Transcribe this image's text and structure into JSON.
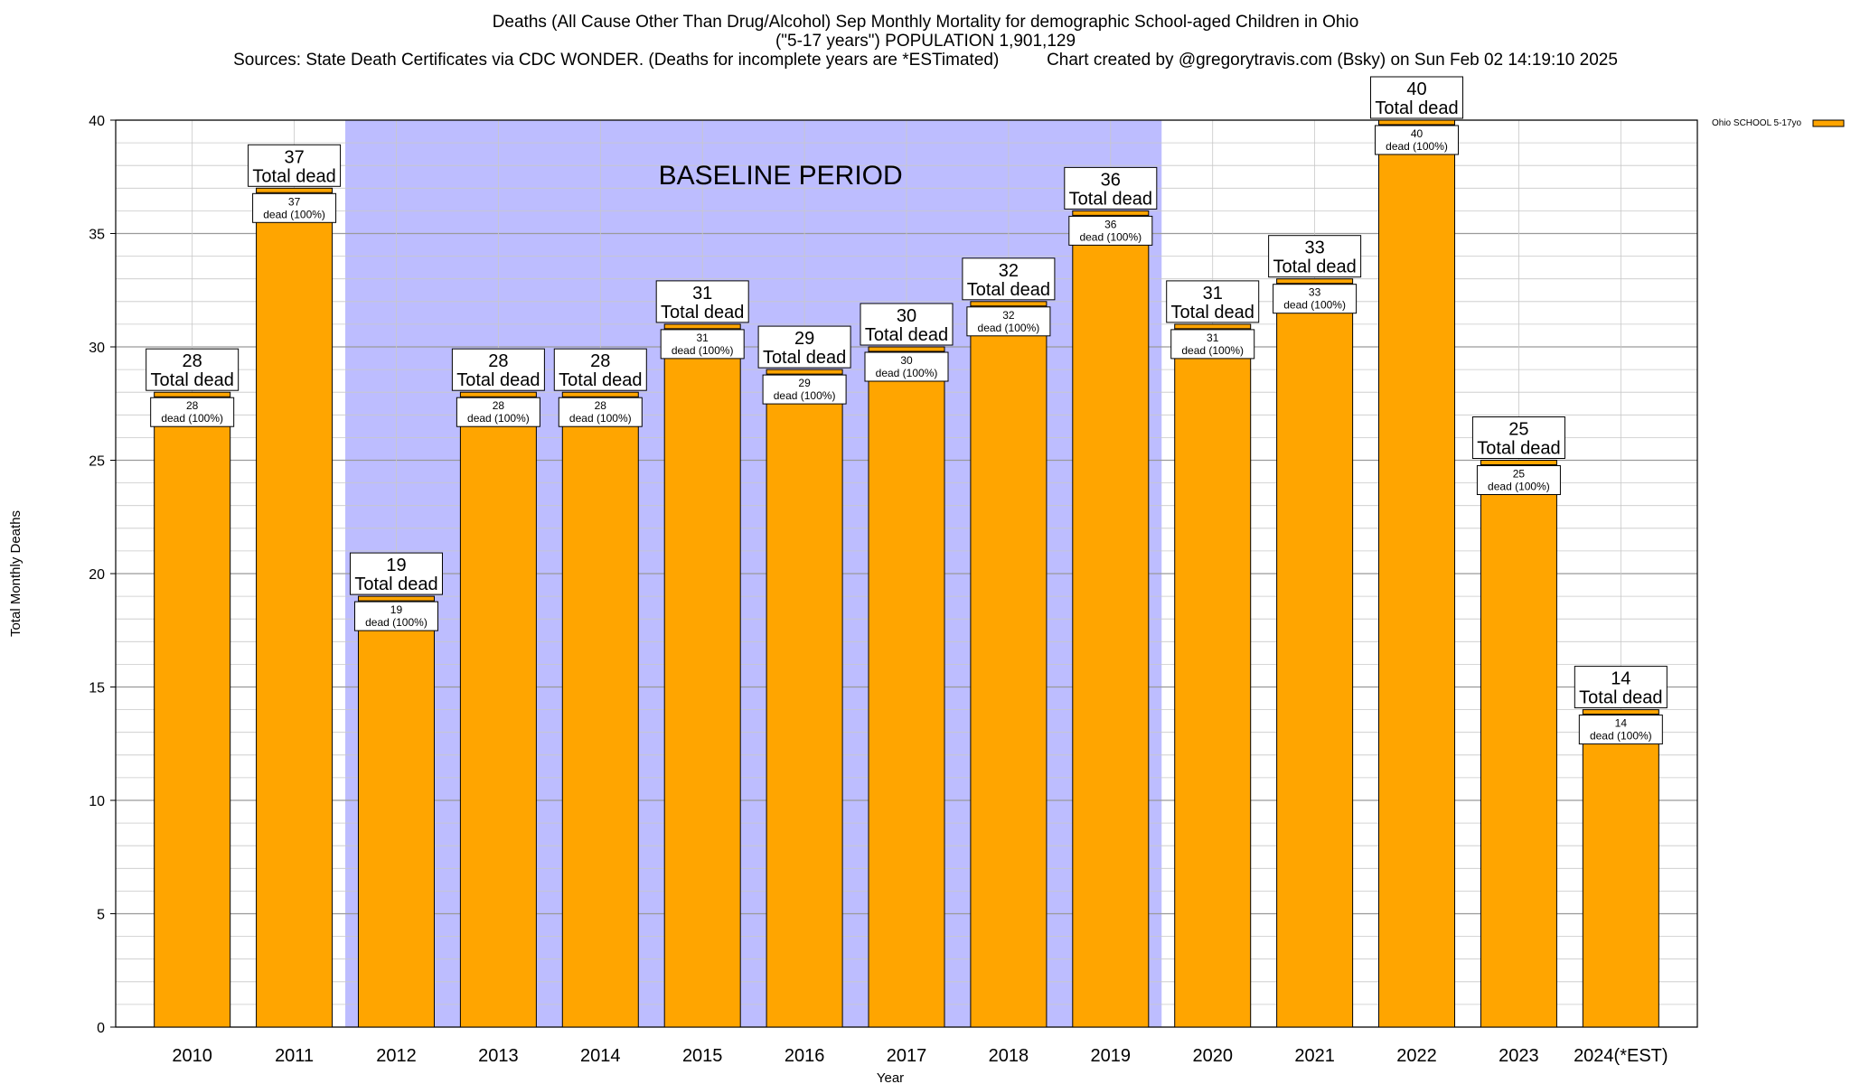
{
  "titles": {
    "line1": "Deaths (All Cause Other Than Drug/Alcohol) Sep Monthly Mortality for demographic School-aged Children in Ohio",
    "line2": "(\"5-17 years\") POPULATION 1,901,129",
    "line3_left": "Sources: State Death Certificates via CDC WONDER. (Deaths for incomplete years are *ESTimated)",
    "line3_right": "Chart created by @gregorytravis.com (Bsky) on Sun Feb 02 14:19:10 2025"
  },
  "chart_data": {
    "type": "bar",
    "xlabel": "Year",
    "ylabel": "Total Monthly Deaths",
    "ylim": [
      0,
      40
    ],
    "yticks": [
      0,
      5,
      10,
      15,
      20,
      25,
      30,
      35,
      40
    ],
    "grid": true,
    "legend_position": "top-right",
    "categories": [
      "2010",
      "2011",
      "2012",
      "2013",
      "2014",
      "2015",
      "2016",
      "2017",
      "2018",
      "2019",
      "2020",
      "2021",
      "2022",
      "2023",
      "2024(*EST)"
    ],
    "series": [
      {
        "name": "Ohio SCHOOL 5-17yo",
        "color": "#FFA500",
        "values": [
          28,
          37,
          19,
          28,
          28,
          31,
          29,
          30,
          32,
          36,
          31,
          33,
          40,
          25,
          14
        ],
        "total_labels": [
          "28",
          "37",
          "19",
          "28",
          "28",
          "31",
          "29",
          "30",
          "32",
          "36",
          "31",
          "33",
          "40",
          "25",
          "14"
        ],
        "inner_labels": [
          "28",
          "37",
          "19",
          "28",
          "28",
          "31",
          "29",
          "30",
          "32",
          "36",
          "31",
          "33",
          "40",
          "25",
          "14"
        ]
      }
    ],
    "total_label_suffix": "Total dead",
    "inner_label_suffix": "dead (100%)",
    "baseline": {
      "label": "BASELINE PERIOD",
      "from": "2012",
      "to": "2019",
      "color": "#BDBDFF"
    }
  }
}
